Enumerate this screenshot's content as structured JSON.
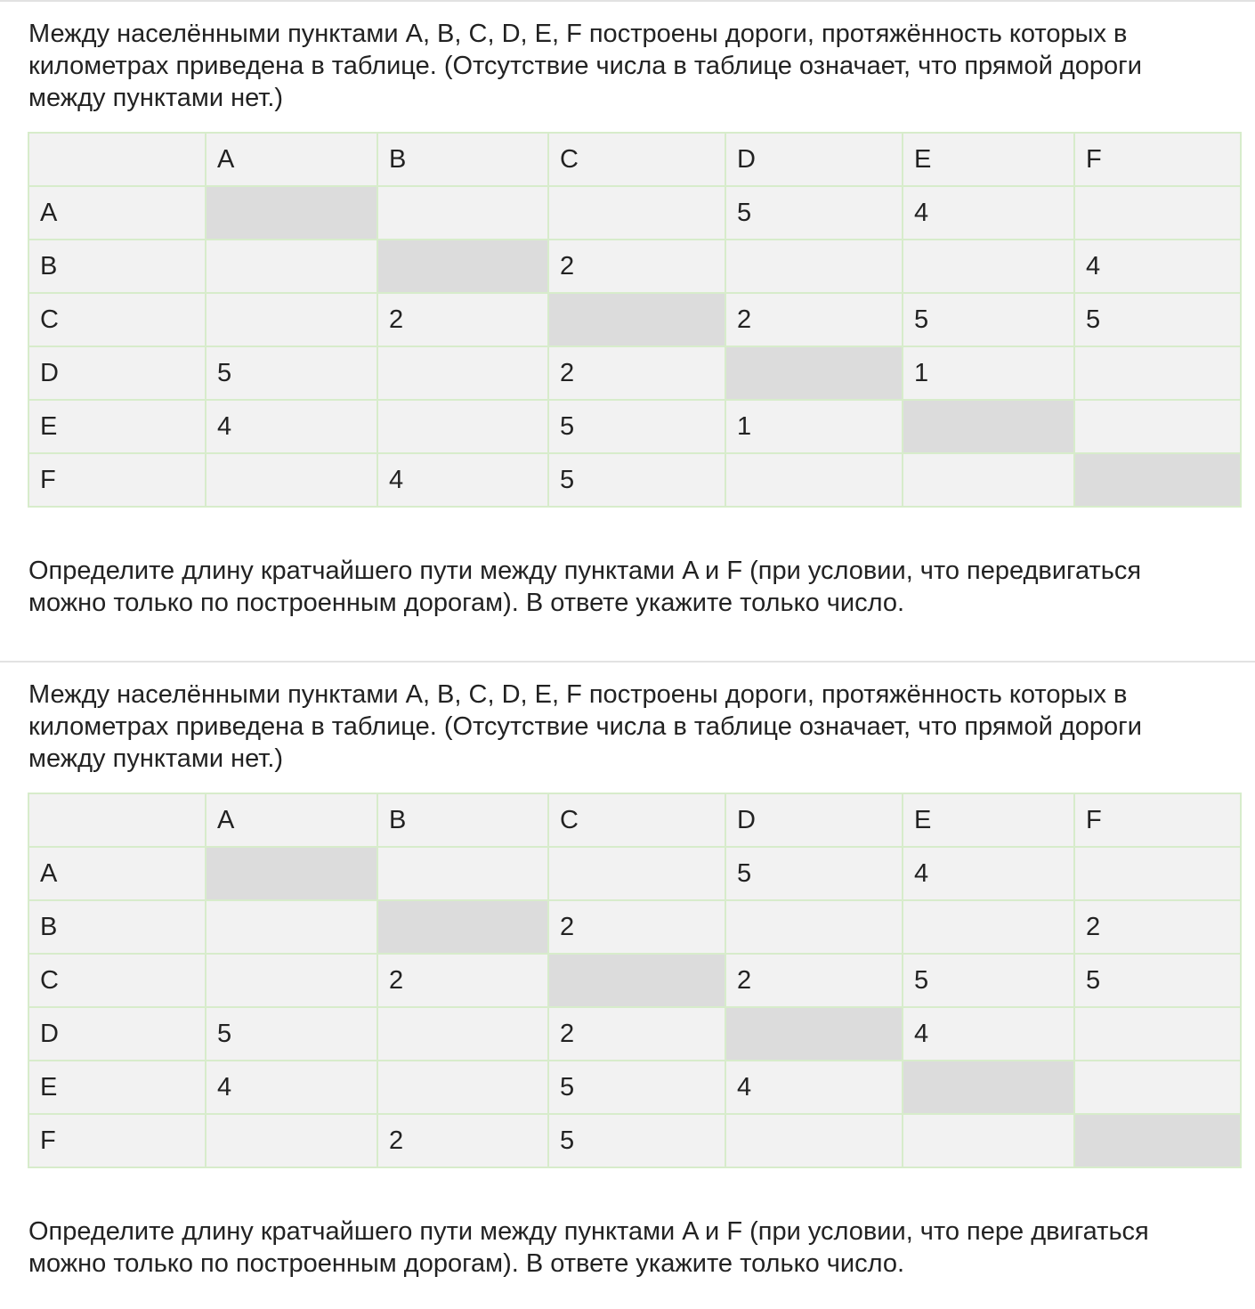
{
  "problems": [
    {
      "intro": "Между населёнными пунктами A, B, C, D, E, F построены дороги, протяжённость которых в\nкилометрах приведена в таблице. (Отсутствие числа в таблице означает, что прямой дороги\nмежду пунктами нет.)",
      "table": {
        "col_headers": [
          "",
          "A",
          "B",
          "C",
          "D",
          "E",
          "F"
        ],
        "rows": [
          {
            "label": "A",
            "cells": [
              "",
              "",
              "",
              "5",
              "4",
              ""
            ]
          },
          {
            "label": "B",
            "cells": [
              "",
              "",
              "2",
              "",
              "",
              "4"
            ]
          },
          {
            "label": "C",
            "cells": [
              "",
              "2",
              "",
              "2",
              "5",
              "5"
            ]
          },
          {
            "label": "D",
            "cells": [
              "5",
              "",
              "2",
              "",
              "1",
              ""
            ]
          },
          {
            "label": "E",
            "cells": [
              "4",
              "",
              "5",
              "1",
              "",
              ""
            ]
          },
          {
            "label": "F",
            "cells": [
              "",
              "4",
              "5",
              "",
              "",
              ""
            ]
          }
        ]
      },
      "question": "Определите длину кратчайшего пути между пунктами A и F (при условии, что передвигаться\nможно только по построенным дорогам). В ответе укажите только число."
    },
    {
      "intro": "Между населёнными пунктами A, B, C, D, E, F построены дороги, протяжённость которых в\nкилометрах приведена в таблице. (Отсутствие числа в таблице означает, что прямой дороги\nмежду пунктами нет.)",
      "table": {
        "col_headers": [
          "",
          "A",
          "B",
          "C",
          "D",
          "E",
          "F"
        ],
        "rows": [
          {
            "label": "A",
            "cells": [
              "",
              "",
              "",
              "5",
              "4",
              ""
            ]
          },
          {
            "label": "B",
            "cells": [
              "",
              "",
              "2",
              "",
              "",
              "2"
            ]
          },
          {
            "label": "C",
            "cells": [
              "",
              "2",
              "",
              "2",
              "5",
              "5"
            ]
          },
          {
            "label": "D",
            "cells": [
              "5",
              "",
              "2",
              "",
              "4",
              ""
            ]
          },
          {
            "label": "E",
            "cells": [
              "4",
              "",
              "5",
              "4",
              "",
              ""
            ]
          },
          {
            "label": "F",
            "cells": [
              "",
              "2",
              "5",
              "",
              "",
              ""
            ]
          }
        ]
      },
      "question": "Определите длину кратчайшего пути между пунктами A и F (при условии, что пере двигаться\nможно только по построенным дорогам). В ответе укажите только число."
    }
  ],
  "colors": {
    "table_border": "#d7eccb",
    "cell_background": "#f2f2f2",
    "diagonal_background": "#dcdcdc",
    "separator": "#e2e2e2",
    "text": "#222222"
  }
}
